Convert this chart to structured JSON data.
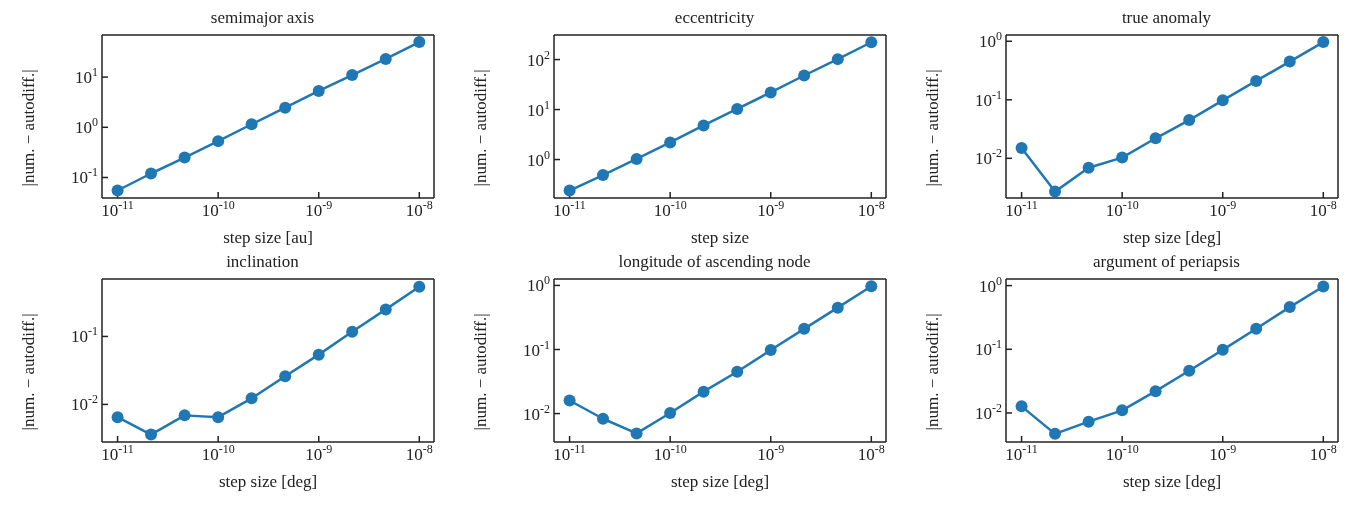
{
  "chart_data": [
    {
      "type": "line",
      "title": "semimajor axis",
      "xlabel": "step size [au]",
      "ylabel": "|num. − autodiff.|",
      "log": "xy",
      "marker": "circle",
      "line_style": "solid",
      "grid": false,
      "legend": false,
      "x": [
        1e-11,
        2.15e-11,
        4.64e-11,
        1e-10,
        2.15e-10,
        4.64e-10,
        1e-09,
        2.15e-09,
        4.64e-09,
        1e-08
      ],
      "series": [
        {
          "color": "#1f77b4",
          "values": [
            0.055,
            0.12,
            0.25,
            0.53,
            1.15,
            2.46,
            5.3,
            11,
            23,
            50
          ]
        }
      ],
      "xlim": [
        7e-12,
        1.4e-08
      ],
      "xticks": [
        {
          "value": 1e-11,
          "label": "10$^{-11}$"
        },
        {
          "value": 1e-10,
          "label": "10$^{-10}$"
        },
        {
          "value": 1e-09,
          "label": "10$^{-9}$"
        },
        {
          "value": 1e-08,
          "label": "10$^{-8}$"
        }
      ],
      "ylim": [
        0.039,
        69
      ],
      "yticks": [
        {
          "value": 0.1,
          "label": "10$^{-1}$"
        },
        {
          "value": 1,
          "label": "10$^{0}$"
        },
        {
          "value": 10,
          "label": "10$^{1}$"
        }
      ]
    },
    {
      "type": "line",
      "title": "eccentricity",
      "xlabel": "step size",
      "ylabel": "|num. − autodiff.|",
      "log": "xy",
      "marker": "circle",
      "line_style": "solid",
      "grid": false,
      "legend": false,
      "x": [
        1e-11,
        2.15e-11,
        4.64e-11,
        1e-10,
        2.15e-10,
        4.64e-10,
        1e-09,
        2.15e-09,
        4.64e-09,
        1e-08
      ],
      "series": [
        {
          "color": "#1f77b4",
          "values": [
            0.24,
            0.49,
            1.03,
            2.2,
            4.8,
            10.3,
            22,
            48,
            102,
            222
          ]
        }
      ],
      "xlim": [
        7e-12,
        1.4e-08
      ],
      "xticks": [
        {
          "value": 1e-11,
          "label": "10$^{-11}$"
        },
        {
          "value": 1e-10,
          "label": "10$^{-10}$"
        },
        {
          "value": 1e-09,
          "label": "10$^{-9}$"
        },
        {
          "value": 1e-08,
          "label": "10$^{-8}$"
        }
      ],
      "ylim": [
        0.17,
        310
      ],
      "yticks": [
        {
          "value": 1,
          "label": "10$^{0}$"
        },
        {
          "value": 10,
          "label": "10$^{1}$"
        },
        {
          "value": 100,
          "label": "10$^{2}$"
        }
      ]
    },
    {
      "type": "line",
      "title": "true anomaly",
      "xlabel": "step size [deg]",
      "ylabel": "|num. − autodiff.|",
      "log": "xy",
      "marker": "circle",
      "line_style": "solid",
      "grid": false,
      "legend": false,
      "x": [
        1e-11,
        2.15e-11,
        4.64e-11,
        1e-10,
        2.15e-10,
        4.64e-10,
        1e-09,
        2.15e-09,
        4.64e-09,
        1e-08
      ],
      "series": [
        {
          "color": "#1f77b4",
          "values": [
            0.015,
            0.0027,
            0.0069,
            0.0103,
            0.022,
            0.045,
            0.098,
            0.21,
            0.45,
            0.97
          ]
        }
      ],
      "xlim": [
        7e-12,
        1.4e-08
      ],
      "xticks": [
        {
          "value": 1e-11,
          "label": "10$^{-11}$"
        },
        {
          "value": 1e-10,
          "label": "10$^{-10}$"
        },
        {
          "value": 1e-09,
          "label": "10$^{-9}$"
        },
        {
          "value": 1e-08,
          "label": "10$^{-8}$"
        }
      ],
      "ylim": [
        0.0021,
        1.28
      ],
      "yticks": [
        {
          "value": 0.01,
          "label": "10$^{-2}$"
        },
        {
          "value": 0.1,
          "label": "10$^{-1}$"
        },
        {
          "value": 1,
          "label": "10$^{0}$"
        }
      ]
    },
    {
      "type": "line",
      "title": "inclination",
      "xlabel": "step size [deg]",
      "ylabel": "|num. − autodiff.|",
      "log": "xy",
      "marker": "circle",
      "line_style": "solid",
      "grid": false,
      "legend": false,
      "x": [
        1e-11,
        2.15e-11,
        4.64e-11,
        1e-10,
        2.15e-10,
        4.64e-10,
        1e-09,
        2.15e-09,
        4.64e-09,
        1e-08
      ],
      "series": [
        {
          "color": "#1f77b4",
          "values": [
            0.0065,
            0.0036,
            0.0069,
            0.0065,
            0.0123,
            0.026,
            0.054,
            0.117,
            0.25,
            0.54
          ]
        }
      ],
      "xlim": [
        7e-12,
        1.4e-08
      ],
      "xticks": [
        {
          "value": 1e-11,
          "label": "10$^{-11}$"
        },
        {
          "value": 1e-10,
          "label": "10$^{-10}$"
        },
        {
          "value": 1e-09,
          "label": "10$^{-9}$"
        },
        {
          "value": 1e-08,
          "label": "10$^{-8}$"
        }
      ],
      "ylim": [
        0.0028,
        0.7
      ],
      "yticks": [
        {
          "value": 0.01,
          "label": "10$^{-2}$"
        },
        {
          "value": 0.1,
          "label": "10$^{-1}$"
        }
      ]
    },
    {
      "type": "line",
      "title": "longitude of ascending node",
      "xlabel": "step size [deg]",
      "ylabel": "|num. − autodiff.|",
      "log": "xy",
      "marker": "circle",
      "line_style": "solid",
      "grid": false,
      "legend": false,
      "x": [
        1e-11,
        2.15e-11,
        4.64e-11,
        1e-10,
        2.15e-10,
        4.64e-10,
        1e-09,
        2.15e-09,
        4.64e-09,
        1e-08
      ],
      "series": [
        {
          "color": "#1f77b4",
          "values": [
            0.016,
            0.0083,
            0.0049,
            0.0102,
            0.022,
            0.045,
            0.098,
            0.21,
            0.45,
            0.97
          ]
        }
      ],
      "xlim": [
        7e-12,
        1.4e-08
      ],
      "xticks": [
        {
          "value": 1e-11,
          "label": "10$^{-11}$"
        },
        {
          "value": 1e-10,
          "label": "10$^{-10}$"
        },
        {
          "value": 1e-09,
          "label": "10$^{-9}$"
        },
        {
          "value": 1e-08,
          "label": "10$^{-8}$"
        }
      ],
      "ylim": [
        0.0036,
        1.26
      ],
      "yticks": [
        {
          "value": 0.01,
          "label": "10$^{-2}$"
        },
        {
          "value": 0.1,
          "label": "10$^{-1}$"
        },
        {
          "value": 1,
          "label": "10$^{0}$"
        }
      ]
    },
    {
      "type": "line",
      "title": "argument of periapsis",
      "xlabel": "step size [deg]",
      "ylabel": "|num. − autodiff.|",
      "log": "xy",
      "marker": "circle",
      "line_style": "solid",
      "grid": false,
      "legend": false,
      "x": [
        1e-11,
        2.15e-11,
        4.64e-11,
        1e-10,
        2.15e-10,
        4.64e-10,
        1e-09,
        2.15e-09,
        4.64e-09,
        1e-08
      ],
      "series": [
        {
          "color": "#1f77b4",
          "values": [
            0.0127,
            0.0047,
            0.0073,
            0.011,
            0.022,
            0.046,
            0.098,
            0.21,
            0.46,
            0.97
          ]
        }
      ],
      "xlim": [
        7e-12,
        1.4e-08
      ],
      "xticks": [
        {
          "value": 1e-11,
          "label": "10$^{-11}$"
        },
        {
          "value": 1e-10,
          "label": "10$^{-10}$"
        },
        {
          "value": 1e-09,
          "label": "10$^{-9}$"
        },
        {
          "value": 1e-08,
          "label": "10$^{-8}$"
        }
      ],
      "ylim": [
        0.0035,
        1.27
      ],
      "yticks": [
        {
          "value": 0.01,
          "label": "10$^{-2}$"
        },
        {
          "value": 0.1,
          "label": "10$^{-1}$"
        },
        {
          "value": 1,
          "label": "10$^{0}$"
        }
      ]
    }
  ]
}
